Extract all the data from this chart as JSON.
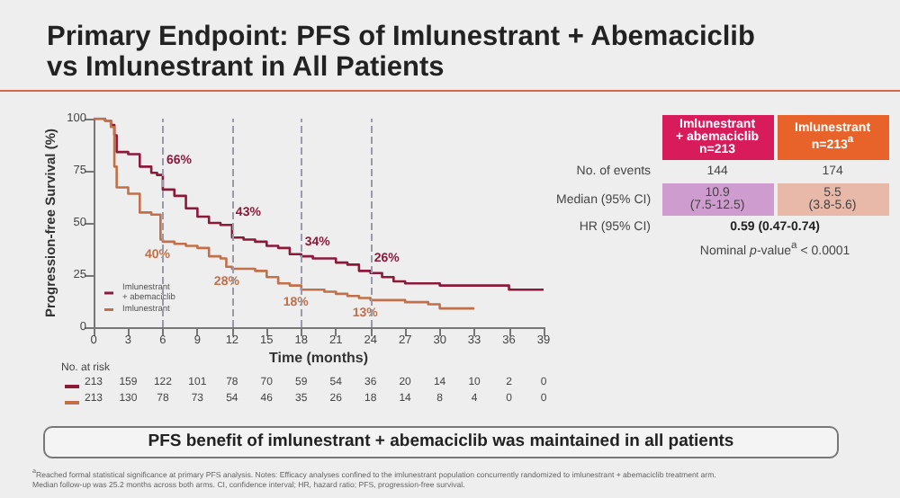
{
  "chart_data": {
    "type": "step",
    "title": "Primary Endpoint: PFS of Imlunestrant + Abemaciclib vs Imlunestrant in All Patients",
    "xlabel": "Time (months)",
    "ylabel": "Progression-free Survival (%)",
    "xlim": [
      0,
      39
    ],
    "xticks": [
      0,
      3,
      6,
      9,
      12,
      15,
      18,
      21,
      24,
      27,
      30,
      33,
      36,
      39
    ],
    "ylim": [
      0,
      100
    ],
    "yticks": [
      0,
      25,
      50,
      75,
      100
    ],
    "grid": false,
    "legend": "bottom left",
    "marker": "none",
    "line_style": "solid",
    "series": [
      {
        "name": "Imlunestrant + abemaciclib",
        "color": "#8b1a3a",
        "x": [
          0,
          1,
          1.5,
          1.8,
          2,
          3,
          4,
          5,
          5.5,
          6,
          7,
          8,
          9,
          10,
          11,
          12,
          13,
          14,
          15,
          16,
          17,
          18,
          19,
          21,
          22,
          23,
          24,
          25,
          26,
          27,
          30,
          33,
          36,
          39
        ],
        "values": [
          100,
          99,
          97,
          92,
          84,
          83,
          77,
          74,
          73,
          66,
          63,
          57,
          53,
          50,
          49,
          43,
          42,
          41,
          39,
          38,
          35,
          34,
          33,
          31,
          30,
          27,
          26,
          24,
          22,
          21,
          20,
          20,
          18,
          18
        ]
      },
      {
        "name": "Imlunestrant",
        "color": "#c0704a",
        "x": [
          0,
          1,
          1.5,
          1.8,
          2,
          3,
          4,
          5,
          5.8,
          6,
          7,
          8,
          9,
          10,
          11,
          11.5,
          12,
          14,
          15,
          16,
          17,
          18,
          20,
          21,
          22,
          23,
          24,
          27,
          29,
          30,
          33
        ],
        "values": [
          100,
          99,
          96,
          77,
          67,
          64,
          55,
          54,
          42,
          41,
          40,
          39,
          38,
          34,
          33,
          29,
          28,
          27,
          24,
          21,
          20,
          18,
          17,
          16,
          15,
          14,
          13,
          12,
          11,
          9,
          9
        ]
      }
    ],
    "ref_lines": [
      {
        "axis": "x",
        "value": 6,
        "color": "#9a9aa8",
        "line_style": "dashed"
      },
      {
        "axis": "x",
        "value": 12,
        "color": "#9a9aa8",
        "line_style": "dashed"
      },
      {
        "axis": "x",
        "value": 18,
        "color": "#9a9aa8",
        "line_style": "dashed"
      },
      {
        "axis": "x",
        "value": 24,
        "color": "#9a9aa8",
        "line_style": "dashed"
      }
    ],
    "annotations": [
      "No. at risk",
      "213 159 122 101 78 70 59 54 36 20 14 10 2 0",
      "213 130 78 73 54 46 35 26 18 14 8 4 0 0",
      "Imlunestrant\n+ abemaciclib\nn=213",
      "Imlunestrant\nn=213$^{a}$",
      "No. of events",
      "144",
      "174",
      "Median (95% CI)",
      "10.9\n(7.5-12.5)",
      "5.5\n(3.8-5.6)",
      "HR (95% CI)",
      "0.59 (0.47-0.74)",
      "Nominal p-value$^{a}$ < 0.0001",
      "PFS benefit of imlunestrant + abemaciclib was maintained in all patients",
      "$^{a}$Reached formal statistical significance at primary PFS analysis. Notes: Efficacy analyses confined to the imlunestrant population concurrently randomized to imlunestrant + abemaciclib treatment arm.",
      "Median follow-up was 25.2 months across both arms. CI, confidence interval; HR, hazard ratio; PFS, progression-free survival.",
      {
        "text": "66%",
        "x": 6,
        "y": 66
      },
      {
        "text": "43%",
        "x": 12,
        "y": 43
      },
      {
        "text": "34%",
        "x": 18,
        "y": 34
      },
      {
        "text": "26%",
        "x": 24,
        "y": 26
      },
      {
        "text": "40%",
        "x": 6,
        "y": 41
      },
      {
        "text": "28%",
        "x": 12,
        "y": 28
      },
      {
        "text": "18%",
        "x": 18,
        "y": 18
      },
      {
        "text": "13%",
        "x": 24,
        "y": 13
      }
    ]
  }
}
